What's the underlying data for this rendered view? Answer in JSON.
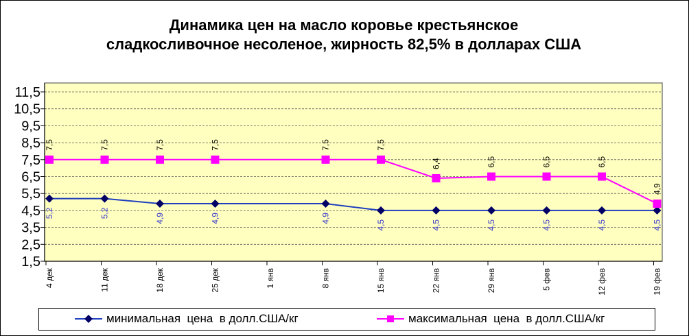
{
  "chart_data": {
    "type": "line",
    "title": "Динамика цен на масло коровье крестьянское сладкосливочное несоленое, жирность 82,5% в долларах США",
    "title_lines": [
      "Динамика цен на масло коровье крестьянское",
      "сладкосливочное несоленое, жирность 82,5%  в долларах США"
    ],
    "categories": [
      "4 дек",
      "11 дек",
      "18 дек",
      "25 дек",
      "1 янв",
      "8 янв",
      "15 янв",
      "22 янв",
      "29 янв",
      "5 фев",
      "12 фев",
      "19 фев"
    ],
    "yticks": [
      "11,5",
      "10,5",
      "9,5",
      "8,5",
      "7,5",
      "6,5",
      "5,5",
      "4,5",
      "3,5",
      "2,5",
      "1,5"
    ],
    "ylim": [
      1.5,
      11.5
    ],
    "grid": true,
    "legend_position": "bottom",
    "series": [
      {
        "name": "минимальная  цена  в долл.США/кг",
        "color": "#1f3fbf",
        "marker_color": "#000066",
        "label_color": "#3333cc",
        "marker": "diamond",
        "values": [
          5.2,
          5.2,
          4.9,
          4.9,
          null,
          4.9,
          4.5,
          4.5,
          4.5,
          4.5,
          4.5,
          4.5
        ],
        "labels": [
          "5,2",
          "5,2",
          "4,9",
          "4,9",
          null,
          "4,9",
          "4,5",
          "4,5",
          "4,5",
          "4,5",
          "4,5",
          "4,5"
        ]
      },
      {
        "name": "максимальная  цена  в долл.США/кг",
        "color": "#ff00ff",
        "marker_color": "#ff00ff",
        "label_color": "#000000",
        "marker": "square",
        "values": [
          7.5,
          7.5,
          7.5,
          7.5,
          null,
          7.5,
          7.5,
          6.4,
          6.5,
          6.5,
          6.5,
          4.9
        ],
        "labels": [
          "7,5",
          "7,5",
          "7,5",
          "7,5",
          null,
          "7,5",
          "7,5",
          "6,4",
          "6,5",
          "6,5",
          "6,5",
          "4,9"
        ]
      }
    ]
  }
}
